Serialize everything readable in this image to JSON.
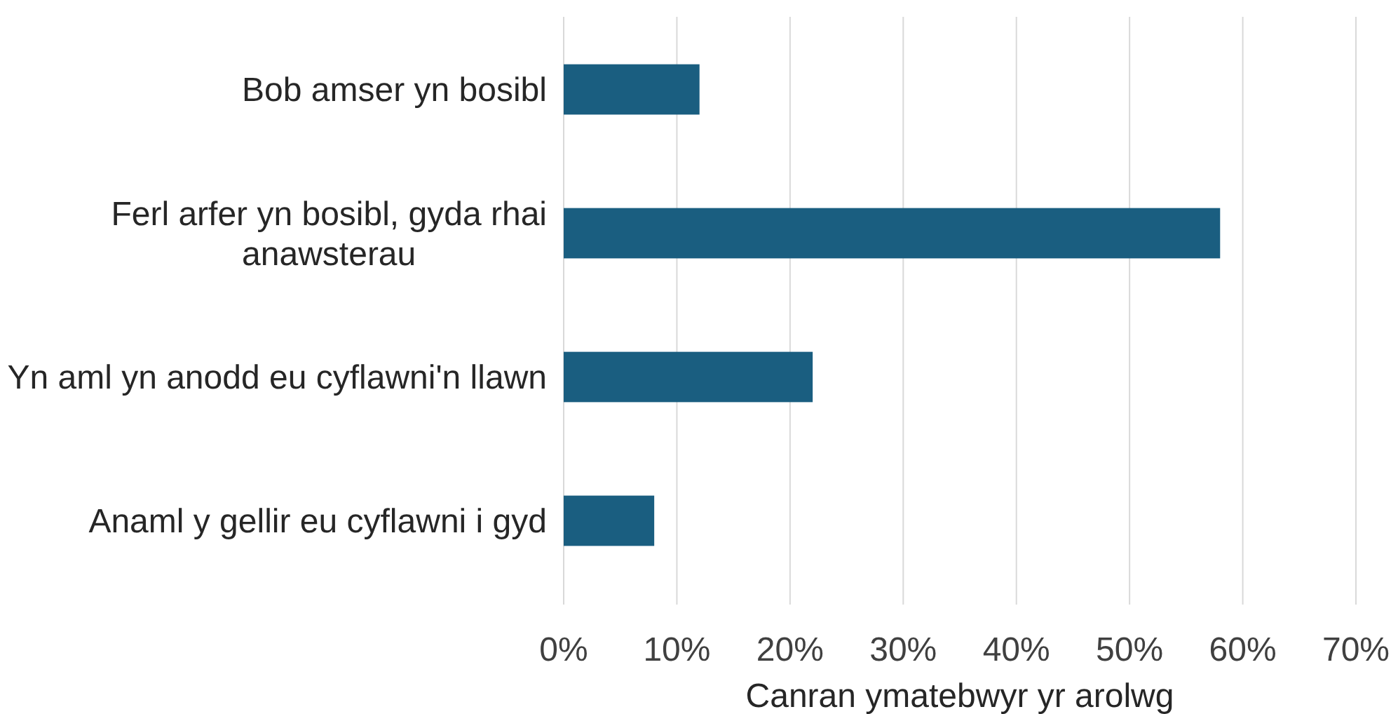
{
  "chart_data": {
    "type": "bar",
    "orientation": "horizontal",
    "categories": [
      "Bob amser yn bosibl",
      "Ferl arfer yn bosibl, gyda rhai anawsterau",
      "Yn aml yn anodd eu cyflawni'n llawn",
      "Anaml y gellir eu cyflawni i gyd"
    ],
    "values": [
      12,
      58,
      22,
      8
    ],
    "color": "#1a5e80",
    "xlim": [
      0,
      70
    ],
    "xticks": [
      {
        "value": 0,
        "label": "0%"
      },
      {
        "value": 10,
        "label": "10%"
      },
      {
        "value": 20,
        "label": "20%"
      },
      {
        "value": 30,
        "label": "30%"
      },
      {
        "value": 40,
        "label": "40%"
      },
      {
        "value": 50,
        "label": "50%"
      },
      {
        "value": 60,
        "label": "60%"
      },
      {
        "value": 70,
        "label": "70%"
      }
    ],
    "xlabel": "Canran ymatebwyr yr arolwg",
    "grid": "x"
  }
}
